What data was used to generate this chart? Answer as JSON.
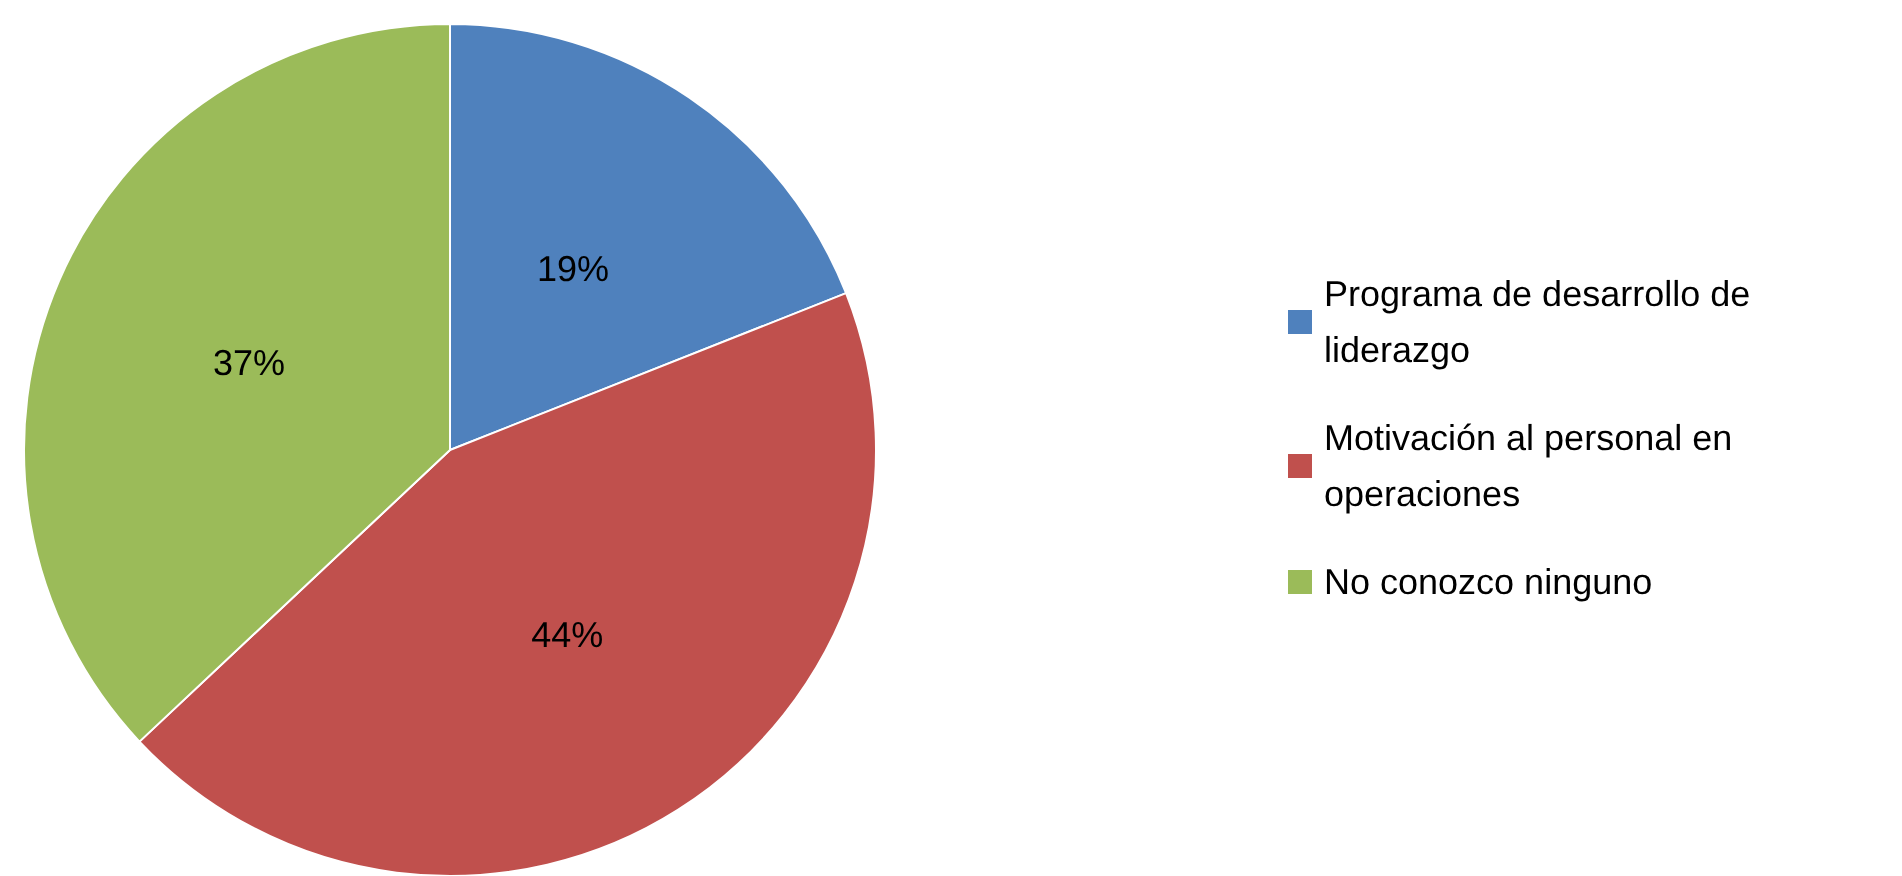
{
  "chart_data": {
    "type": "pie",
    "categories": [
      "Programa de desarrollo de liderazgo",
      "Motivación al personal en operaciones",
      "No conozco ninguno"
    ],
    "values": [
      19,
      44,
      37
    ],
    "colors": [
      "#4f81bd",
      "#c0504d",
      "#9bbb59"
    ],
    "value_labels": [
      "19%",
      "44%",
      "37%"
    ],
    "legend": "right"
  }
}
